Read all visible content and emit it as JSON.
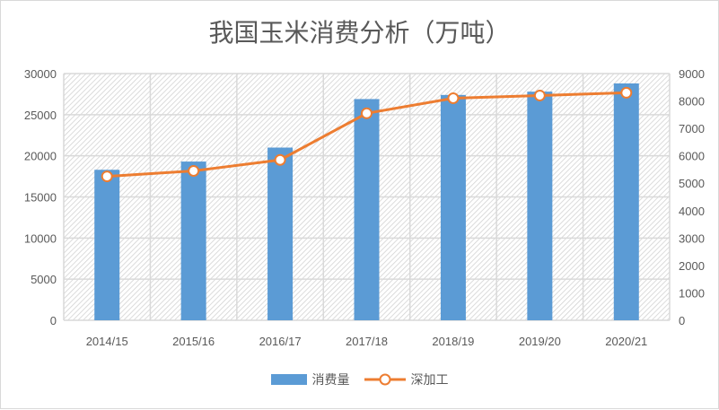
{
  "chart_data": {
    "type": "bar+line",
    "title": "我国玉米消费分析（万吨）",
    "categories": [
      "2014/15",
      "2015/16",
      "2016/17",
      "2017/18",
      "2018/19",
      "2019/20",
      "2020/21"
    ],
    "series": [
      {
        "name": "消费量",
        "type": "bar",
        "axis": "left",
        "color": "#5b9bd5",
        "values": [
          18300,
          19300,
          21000,
          26900,
          27400,
          27800,
          28800
        ]
      },
      {
        "name": "深加工",
        "type": "line",
        "axis": "right",
        "color": "#ed7d31",
        "values": [
          5250,
          5450,
          5850,
          7550,
          8100,
          8200,
          8300
        ]
      }
    ],
    "ylim_left": [
      0,
      30000
    ],
    "yticks_left": [
      "0",
      "5000",
      "10000",
      "15000",
      "20000",
      "25000",
      "30000"
    ],
    "ylim_right": [
      0,
      9000
    ],
    "yticks_right": [
      "0",
      "1000",
      "2000",
      "3000",
      "4000",
      "5000",
      "6000",
      "7000",
      "8000",
      "9000"
    ],
    "grid": true,
    "legend": "bottom"
  }
}
